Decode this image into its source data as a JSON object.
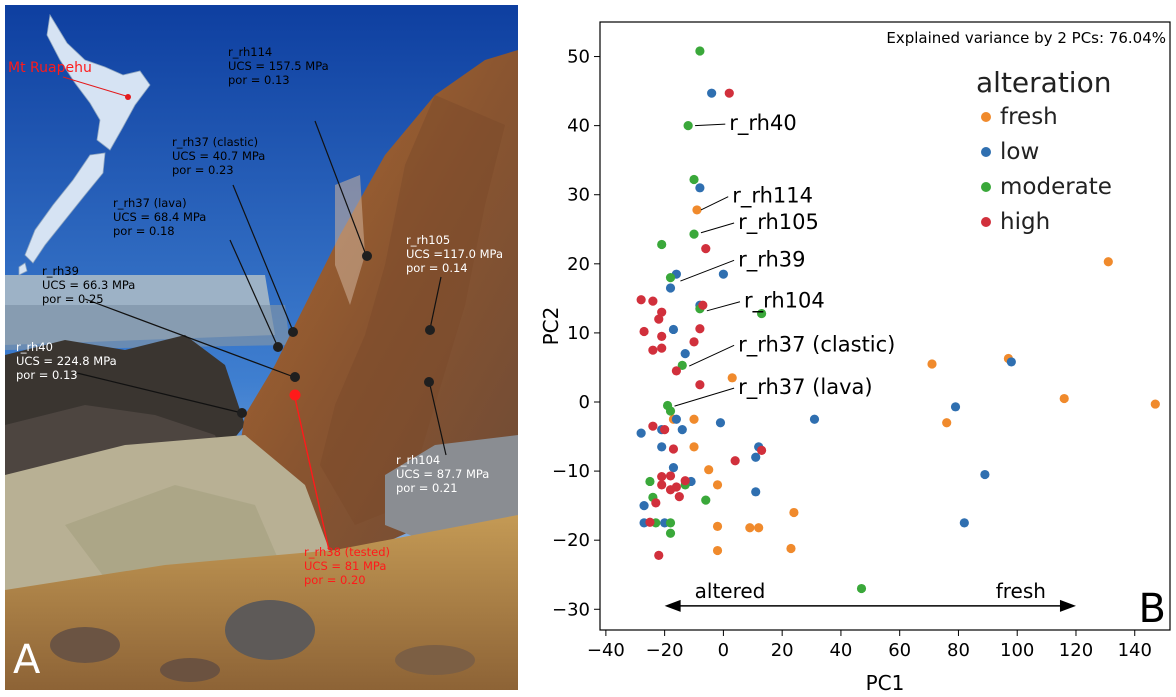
{
  "panel_a": {
    "letter": "A",
    "location_label": "Mt Ruapehu",
    "labels": [
      {
        "id": "rh114",
        "lines": [
          "r_rh114",
          "UCS = 157.5 MPa",
          "por = 0.13"
        ],
        "tone": "dark"
      },
      {
        "id": "rh37c",
        "lines": [
          "r_rh37 (clastic)",
          "UCS = 40.7 MPa",
          "por = 0.23"
        ],
        "tone": "dark"
      },
      {
        "id": "rh37l",
        "lines": [
          "r_rh37 (lava)",
          "UCS = 68.4 MPa",
          "por = 0.18"
        ],
        "tone": "dark"
      },
      {
        "id": "rh39",
        "lines": [
          "r_rh39",
          "UCS = 66.3 MPa",
          "por = 0.25"
        ],
        "tone": "dark"
      },
      {
        "id": "rh40",
        "lines": [
          "r_rh40",
          "UCS = 224.8 MPa",
          "por = 0.13"
        ],
        "tone": "white"
      },
      {
        "id": "rh105",
        "lines": [
          "r_rh105",
          "UCS =117.0 MPa",
          "por = 0.14"
        ],
        "tone": "white"
      },
      {
        "id": "rh104",
        "lines": [
          "r_rh104",
          "UCS = 87.7 MPa",
          "por = 0.21"
        ],
        "tone": "white"
      },
      {
        "id": "rh38",
        "lines": [
          "r_rh38 (tested)",
          "UCS = 81 MPa",
          "por = 0.20"
        ],
        "tone": "red"
      }
    ]
  },
  "chart_data": {
    "type": "scatter",
    "panel_letter": "B",
    "annotation_top": "Explained variance by 2 PCs: 76.04%",
    "xlabel": "PC1",
    "ylabel": "PC2",
    "xlim": [
      -42,
      152
    ],
    "ylim": [
      -33,
      55
    ],
    "xticks": [
      -40,
      -20,
      0,
      20,
      40,
      60,
      80,
      100,
      120,
      140
    ],
    "yticks": [
      -30,
      -20,
      -10,
      0,
      10,
      20,
      30,
      40,
      50
    ],
    "grid": false,
    "legend": {
      "title": "alteration",
      "placement": "top-right"
    },
    "series": [
      {
        "name": "fresh",
        "color": "#f08a2c",
        "points": [
          [
            -9,
            27.8
          ],
          [
            -17,
            -2.5
          ],
          [
            -10,
            -2.5
          ],
          [
            -10,
            -6.5
          ],
          [
            3,
            3.5
          ],
          [
            -5,
            -9.8
          ],
          [
            -2,
            -12
          ],
          [
            -2,
            -18
          ],
          [
            -2,
            -21.5
          ],
          [
            9,
            -18.2
          ],
          [
            12,
            -18.2
          ],
          [
            24,
            -16
          ],
          [
            23,
            -21.2
          ],
          [
            71,
            5.5
          ],
          [
            76,
            -3
          ],
          [
            97,
            6.3
          ],
          [
            116,
            0.5
          ],
          [
            131,
            20.3
          ],
          [
            147,
            -0.3
          ]
        ]
      },
      {
        "name": "low",
        "color": "#2f6fb0",
        "points": [
          [
            -4,
            44.7
          ],
          [
            -8,
            31
          ],
          [
            -16,
            18.5
          ],
          [
            -18,
            16.5
          ],
          [
            0,
            18.5
          ],
          [
            -17,
            10.5
          ],
          [
            -13,
            7
          ],
          [
            -8,
            14
          ],
          [
            -16,
            -2.5
          ],
          [
            -21,
            -4
          ],
          [
            -14,
            -4
          ],
          [
            -28,
            -4.5
          ],
          [
            -21,
            -6.5
          ],
          [
            -17,
            -9.5
          ],
          [
            -11,
            -11.5
          ],
          [
            -27,
            -15
          ],
          [
            -27,
            -17.5
          ],
          [
            -20,
            -17.5
          ],
          [
            -1,
            -3
          ],
          [
            11,
            -8
          ],
          [
            12,
            -6.5
          ],
          [
            11,
            -13
          ],
          [
            31,
            -2.5
          ],
          [
            79,
            -0.7
          ],
          [
            89,
            -10.5
          ],
          [
            82,
            -17.5
          ],
          [
            98,
            5.8
          ]
        ]
      },
      {
        "name": "moderate",
        "color": "#3aa83a",
        "points": [
          [
            -8,
            50.8
          ],
          [
            -12,
            40
          ],
          [
            -10,
            32.2
          ],
          [
            -10,
            24.3
          ],
          [
            -21,
            22.8
          ],
          [
            -18,
            18
          ],
          [
            -8,
            13.5
          ],
          [
            -14,
            5.3
          ],
          [
            -19,
            -0.5
          ],
          [
            -18,
            -1.3
          ],
          [
            -13,
            -12
          ],
          [
            -25,
            -11.5
          ],
          [
            -24,
            -13.8
          ],
          [
            -6,
            -14.2
          ],
          [
            -18,
            -17.5
          ],
          [
            -23,
            -17.5
          ],
          [
            -18,
            -19
          ],
          [
            13,
            12.8
          ],
          [
            47,
            -27
          ]
        ]
      },
      {
        "name": "high",
        "color": "#d1303c",
        "points": [
          [
            2,
            44.7
          ],
          [
            -6,
            22.2
          ],
          [
            -28,
            14.8
          ],
          [
            -24,
            14.6
          ],
          [
            -7,
            14
          ],
          [
            -21,
            13
          ],
          [
            -22,
            12
          ],
          [
            -27,
            10.2
          ],
          [
            -21,
            9.5
          ],
          [
            -8,
            10.6
          ],
          [
            -10,
            8.7
          ],
          [
            -21,
            7.8
          ],
          [
            -24,
            7.5
          ],
          [
            -16,
            4.5
          ],
          [
            -8,
            2.5
          ],
          [
            -24,
            -3.5
          ],
          [
            -20,
            -4
          ],
          [
            -17,
            -6.8
          ],
          [
            -21,
            -10.8
          ],
          [
            -18,
            -10.7
          ],
          [
            -21,
            -12
          ],
          [
            -13,
            -11.4
          ],
          [
            -16,
            -12.3
          ],
          [
            -18,
            -12.7
          ],
          [
            -15,
            -13.7
          ],
          [
            -23,
            -14.6
          ],
          [
            4,
            -8.5
          ],
          [
            13,
            -7
          ],
          [
            -25,
            -17.4
          ],
          [
            -22,
            -22.2
          ]
        ]
      }
    ],
    "annotations": [
      {
        "text": "r_rh40",
        "tx": 2,
        "ty": 40.5,
        "px": -11,
        "py": 40
      },
      {
        "text": "r_rh114",
        "tx": 3,
        "ty": 30,
        "px": -9,
        "py": 27.8
      },
      {
        "text": "r_rh105",
        "tx": 5,
        "ty": 26.2,
        "px": -9,
        "py": 24.5
      },
      {
        "text": "r_rh39",
        "tx": 5,
        "ty": 20.8,
        "px": -16,
        "py": 17.5
      },
      {
        "text": "r_rh104",
        "tx": 7,
        "ty": 14.8,
        "px": -7,
        "py": 13.2
      },
      {
        "text": "r_rh37 (clastic)",
        "tx": 5,
        "ty": 8.5,
        "px": -13,
        "py": 5.2
      },
      {
        "text": "r_rh37 (lava)",
        "tx": 5,
        "ty": 2.3,
        "px": -18,
        "py": -0.6
      }
    ],
    "arrow": {
      "left_label": "altered",
      "right_label": "fresh",
      "x_from": -20,
      "x_to": 120,
      "y": -29.5
    }
  }
}
